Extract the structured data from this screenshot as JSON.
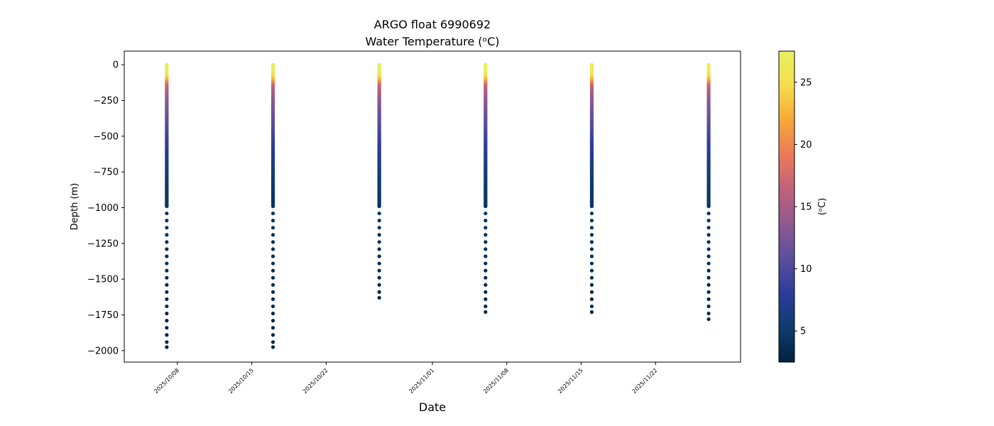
{
  "chart_data": {
    "type": "scatter",
    "title": "ARGO float 6990692",
    "subtitle": "Water Temperature (ᵒC)",
    "xlabel": "Date",
    "ylabel": "Depth (m)",
    "colorbar_label": "(ᵒC)",
    "x_range": [
      "2025-10-03",
      "2025-11-30"
    ],
    "ylim": [
      -2080,
      95
    ],
    "y_ticks": [
      0,
      -250,
      -500,
      -750,
      -1000,
      -1250,
      -1500,
      -1750,
      -2000
    ],
    "y_tick_labels": [
      "0",
      "−250",
      "−500",
      "−750",
      "−1000",
      "−1250",
      "−1500",
      "−1750",
      "−2000"
    ],
    "x_ticks": [
      "2025-10-08",
      "2025-10-15",
      "2025-10-22",
      "2025-11-01",
      "2025-11-08",
      "2025-11-15",
      "2025-11-22"
    ],
    "x_tick_labels": [
      "2025/10/08",
      "2025/10/15",
      "2025/10/22",
      "2025/11/01",
      "2025/11/08",
      "2025/11/15",
      "2025/11/22"
    ],
    "colorbar": {
      "colormap": "thermal",
      "range": [
        2.5,
        27.5
      ],
      "ticks": [
        5,
        10,
        15,
        20,
        25
      ],
      "tick_labels": [
        "5",
        "10",
        "15",
        "20",
        "25"
      ],
      "stops": [
        "#04223f",
        "#0d3d6e",
        "#2e3c9c",
        "#5a4f9e",
        "#8e5a8e",
        "#c0617c",
        "#ec7a59",
        "#f8a839",
        "#f5dd4c",
        "#e6f160"
      ]
    },
    "profiles": [
      {
        "date": "2025-10-07",
        "max_depth": -1975,
        "surface_temp": 27.2
      },
      {
        "date": "2025-10-17",
        "max_depth": -1975,
        "surface_temp": 27.0
      },
      {
        "date": "2025-10-27",
        "max_depth": -1630,
        "surface_temp": 27.6
      },
      {
        "date": "2025-11-06",
        "max_depth": -1730,
        "surface_temp": 27.0
      },
      {
        "date": "2025-11-16",
        "max_depth": -1730,
        "surface_temp": 26.4
      },
      {
        "date": "2025-11-27",
        "max_depth": -1780,
        "surface_temp": 27.3
      }
    ],
    "profile_temperature": {
      "depths": [
        0,
        -50,
        -100,
        -150,
        -250,
        -400,
        -550,
        -700,
        -850,
        -1000,
        -1250,
        -1500,
        -1750,
        -2000
      ],
      "temps": [
        27.2,
        26.8,
        23.5,
        17.0,
        13.5,
        11.0,
        8.5,
        6.5,
        5.0,
        4.5,
        4.0,
        3.5,
        3.0,
        2.8
      ]
    },
    "grid": false,
    "legend": "none"
  }
}
